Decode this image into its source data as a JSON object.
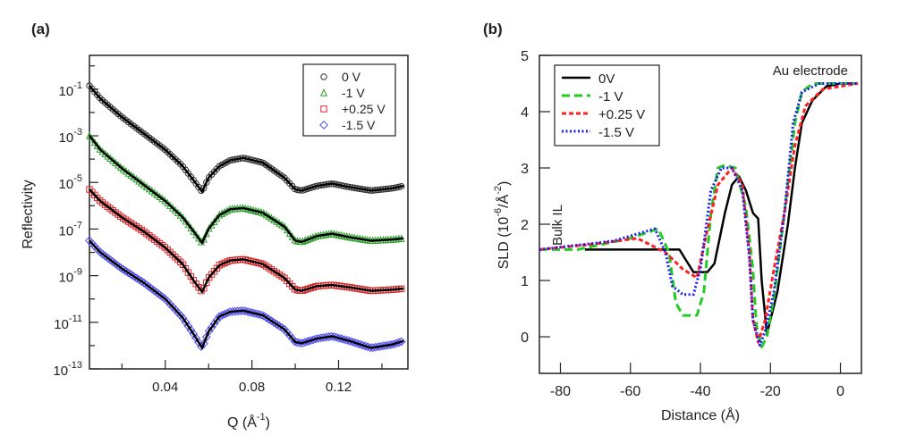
{
  "chart_data": [
    {
      "panel_label": "(a)",
      "type": "scatter",
      "xlabel": "Q (Å",
      "xlabel_sup": "-1",
      "xlabel_end": ")",
      "ylabel": "Reflectivity",
      "yscale": "log",
      "xlim": [
        0.005,
        0.152
      ],
      "ylim_log10": [
        -13,
        0.45
      ],
      "xticks": [
        {
          "v": 0.04,
          "label": "0.04"
        },
        {
          "v": 0.08,
          "label": "0.08"
        },
        {
          "v": 0.12,
          "label": "0.12"
        }
      ],
      "yticks": [
        {
          "v": -1,
          "base": "10",
          "exp": "-1"
        },
        {
          "v": -3,
          "base": "10",
          "exp": "-3"
        },
        {
          "v": -5,
          "base": "10",
          "exp": "-5"
        },
        {
          "v": -7,
          "base": "10",
          "exp": "-7"
        },
        {
          "v": -9,
          "base": "10",
          "exp": "-9"
        },
        {
          "v": -11,
          "base": "10",
          "exp": "-11"
        },
        {
          "v": -13,
          "base": "10",
          "exp": "-13"
        }
      ],
      "legend_position": "top-right",
      "x": [
        0.005,
        0.01,
        0.02,
        0.03,
        0.04,
        0.048,
        0.053,
        0.057,
        0.06,
        0.065,
        0.07,
        0.076,
        0.085,
        0.095,
        0.1,
        0.103,
        0.11,
        0.117,
        0.125,
        0.135,
        0.145,
        0.15
      ],
      "series": [
        {
          "name": "0 V",
          "marker": "circle",
          "color": "#333333",
          "log10_R": [
            -0.85,
            -1.4,
            -2.2,
            -2.9,
            -3.6,
            -4.3,
            -4.9,
            -5.4,
            -4.8,
            -4.3,
            -4.05,
            -3.95,
            -4.15,
            -4.8,
            -5.3,
            -5.35,
            -5.15,
            -5.05,
            -5.2,
            -5.35,
            -5.25,
            -5.15
          ]
        },
        {
          "name": "-1 V",
          "marker": "triangle",
          "color": "#2ca02c",
          "log10_R": [
            -3.0,
            -3.6,
            -4.4,
            -5.1,
            -5.8,
            -6.5,
            -7.1,
            -7.6,
            -7.0,
            -6.4,
            -6.15,
            -6.1,
            -6.3,
            -6.9,
            -7.5,
            -7.55,
            -7.3,
            -7.2,
            -7.35,
            -7.5,
            -7.45,
            -7.4
          ]
        },
        {
          "name": "+0.25 V",
          "marker": "square",
          "color": "#d62728",
          "log10_R": [
            -5.3,
            -5.8,
            -6.5,
            -7.1,
            -7.8,
            -8.5,
            -9.2,
            -9.7,
            -9.1,
            -8.55,
            -8.35,
            -8.3,
            -8.5,
            -9.1,
            -9.6,
            -9.65,
            -9.45,
            -9.4,
            -9.5,
            -9.65,
            -9.6,
            -9.55
          ]
        },
        {
          "name": "-1.5 V",
          "marker": "diamond",
          "color": "#4a4af0",
          "log10_R": [
            -7.5,
            -8.0,
            -8.7,
            -9.3,
            -10.0,
            -10.8,
            -11.5,
            -12.1,
            -11.4,
            -10.75,
            -10.55,
            -10.5,
            -10.7,
            -11.3,
            -11.85,
            -11.9,
            -11.7,
            -11.6,
            -11.8,
            -12.1,
            -11.95,
            -11.8
          ]
        }
      ],
      "fit_color": "#000000"
    },
    {
      "panel_label": "(b)",
      "type": "line",
      "xlabel": "Distance (Å)",
      "ylabel": "SLD (10",
      "ylabel_sup1": "-6",
      "ylabel_mid": "/Å",
      "ylabel_sup2": "-2",
      "ylabel_end": ")",
      "xlim": [
        -86,
        6
      ],
      "ylim": [
        -0.65,
        5
      ],
      "xticks": [
        -80,
        -60,
        -40,
        -20,
        0
      ],
      "yticks": [
        0,
        1,
        2,
        3,
        4,
        5
      ],
      "annotations": [
        "Au electrode",
        "Bulk IL"
      ],
      "legend_position": "top-left",
      "series": [
        {
          "name": "0V",
          "style": "solid",
          "color": "#000000",
          "x": [
            -73,
            -46,
            -44,
            -42,
            -38,
            -36,
            -33,
            -31,
            -29,
            -27,
            -25,
            -23.5,
            -22.5,
            -21,
            -18,
            -15,
            -13,
            -11,
            -8,
            -4,
            0,
            5
          ],
          "y": [
            1.55,
            1.55,
            1.35,
            1.15,
            1.15,
            1.3,
            2.2,
            2.7,
            2.85,
            2.6,
            2.2,
            2.1,
            1.0,
            0.05,
            0.8,
            2.0,
            3.0,
            3.8,
            4.2,
            4.45,
            4.5,
            4.5
          ]
        },
        {
          "name": "-1 V",
          "style": "dashed",
          "color": "#22cc22",
          "x": [
            -86,
            -75,
            -60,
            -52,
            -49,
            -47,
            -45,
            -41,
            -39,
            -37,
            -35,
            -33,
            -30,
            -27,
            -25,
            -24,
            -22.5,
            -21,
            -19,
            -16,
            -13,
            -11,
            -8,
            5
          ],
          "y": [
            1.55,
            1.55,
            1.75,
            1.92,
            1.5,
            0.6,
            0.38,
            0.38,
            0.8,
            2.2,
            3.0,
            3.05,
            3.0,
            2.3,
            1.2,
            0.2,
            -0.18,
            0.0,
            0.7,
            2.2,
            3.8,
            4.35,
            4.5,
            4.5
          ]
        },
        {
          "name": "+0.25 V",
          "style": "short-dashed",
          "color": "#ff2020",
          "x": [
            -86,
            -70,
            -58,
            -50,
            -45,
            -41,
            -38,
            -35,
            -31,
            -28,
            -26,
            -25,
            -23.5,
            -21.5,
            -19,
            -16,
            -13,
            -10,
            -5,
            5
          ],
          "y": [
            1.55,
            1.65,
            1.75,
            1.5,
            1.2,
            1.05,
            1.9,
            2.7,
            3.0,
            2.7,
            1.5,
            0.3,
            -0.1,
            0.3,
            1.2,
            2.2,
            3.4,
            4.1,
            4.4,
            4.5
          ]
        },
        {
          "name": "-1.5 V",
          "style": "dotted",
          "color": "#1a1aff",
          "x": [
            -86,
            -65,
            -53,
            -50,
            -48,
            -45,
            -42,
            -40,
            -37,
            -34,
            -31,
            -28,
            -26,
            -25,
            -23,
            -21.5,
            -19,
            -16,
            -13.5,
            -11,
            -6,
            5
          ],
          "y": [
            1.55,
            1.7,
            1.92,
            1.5,
            0.9,
            0.75,
            0.75,
            1.2,
            2.6,
            3.0,
            3.0,
            2.6,
            1.4,
            0.3,
            -0.15,
            0.1,
            0.8,
            2.2,
            3.8,
            4.35,
            4.5,
            4.5
          ]
        }
      ]
    }
  ]
}
